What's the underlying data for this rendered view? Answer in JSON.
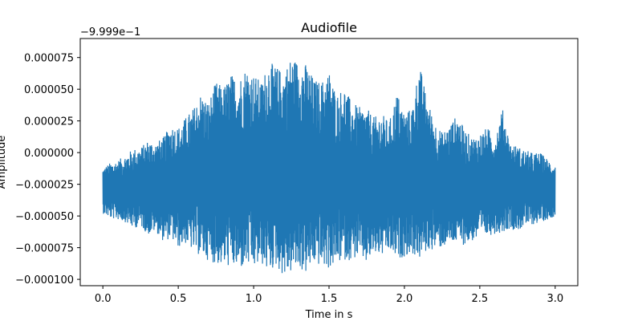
{
  "chart_data": {
    "type": "line",
    "title": "Audiofile",
    "xlabel": "Time in s",
    "ylabel": "Amplitude",
    "offset_label": "−9.999e−1",
    "offset_value": -0.9999,
    "xlim": [
      -0.15,
      3.15
    ],
    "ylim": [
      -0.000105,
      9e-05
    ],
    "xticks": [
      0.0,
      0.5,
      1.0,
      1.5,
      2.0,
      2.5,
      3.0
    ],
    "xtick_labels": [
      "0.0",
      "0.5",
      "1.0",
      "1.5",
      "2.0",
      "2.5",
      "3.0"
    ],
    "yticks": [
      7.5e-05,
      5e-05,
      2.5e-05,
      0.0,
      -2.5e-05,
      -5e-05,
      -7.5e-05,
      -0.0001
    ],
    "ytick_labels": [
      "0.000075",
      "0.000050",
      "0.000025",
      "0.000000",
      "−0.000025",
      "−0.000050",
      "−0.000075",
      "−0.000100"
    ],
    "grid": false,
    "line_color": "#1f77b4",
    "series": [
      {
        "x": [
          0.0,
          0.05,
          0.1,
          0.15,
          0.2,
          0.25,
          0.3,
          0.35,
          0.4,
          0.45,
          0.5,
          0.55,
          0.6,
          0.65,
          0.7,
          0.75,
          0.8,
          0.85,
          0.9,
          0.95,
          1.0,
          1.05,
          1.1,
          1.15,
          1.2,
          1.25,
          1.3,
          1.35,
          1.4,
          1.45,
          1.5,
          1.55,
          1.6,
          1.65,
          1.7,
          1.75,
          1.8,
          1.85,
          1.9,
          1.95,
          2.0,
          2.05,
          2.1,
          2.15,
          2.2,
          2.25,
          2.3,
          2.35,
          2.4,
          2.45,
          2.5,
          2.55,
          2.6,
          2.65,
          2.7,
          2.75,
          2.8,
          2.85,
          2.9,
          2.95,
          3.0
        ],
        "upper": [
          -1.2e-05,
          -8e-06,
          -6e-06,
          -2e-06,
          3e-06,
          4e-06,
          1e-05,
          8e-06,
          1.2e-05,
          2.2e-05,
          2e-05,
          2.8e-05,
          3.5e-05,
          4.7e-05,
          4e-05,
          5.6e-05,
          5.2e-05,
          6.2e-05,
          5.8e-05,
          6.8e-05,
          6.2e-05,
          5.6e-05,
          7.2e-05,
          6.8e-05,
          6.4e-05,
          7.6e-05,
          7.2e-05,
          7e-05,
          5.8e-05,
          5.6e-05,
          6.5e-05,
          4.6e-05,
          5.2e-05,
          4e-05,
          3.6e-05,
          3.5e-05,
          2.8e-05,
          3.1e-05,
          2.4e-05,
          4.8e-05,
          3.2e-05,
          3.5e-05,
          7e-05,
          4.2e-05,
          2.5e-05,
          1.6e-05,
          2.2e-05,
          3e-05,
          1.8e-05,
          1.2e-05,
          1.5e-05,
          2e-05,
          1.2e-05,
          3.5e-05,
          8e-06,
          5e-06,
          2e-06,
          0.0,
          0.0,
          -5e-06,
          -1e-05
        ],
        "lower": [
          -4.8e-05,
          -5.2e-05,
          -5.3e-05,
          -5.5e-05,
          -6e-05,
          -5.8e-05,
          -6.5e-05,
          -6.2e-05,
          -7e-05,
          -6.8e-05,
          -7.5e-05,
          -7.2e-05,
          -7.8e-05,
          -8.2e-05,
          -8.5e-05,
          -8.8e-05,
          -9e-05,
          -9e-05,
          -9.3e-05,
          -9e-05,
          -9.2e-05,
          -8.8e-05,
          -9.5e-05,
          -9e-05,
          -9.8e-05,
          -9.5e-05,
          -9.2e-05,
          -9.6e-05,
          -8.8e-05,
          -9e-05,
          -9.2e-05,
          -8.8e-05,
          -8.5e-05,
          -8.5e-05,
          -8.2e-05,
          -8.8e-05,
          -8e-05,
          -8.2e-05,
          -7.8e-05,
          -8.5e-05,
          -8.2e-05,
          -8e-05,
          -8.5e-05,
          -7.8e-05,
          -7.6e-05,
          -7.5e-05,
          -7.2e-05,
          -7.2e-05,
          -7.3e-05,
          -7e-05,
          -6.8e-05,
          -6.6e-05,
          -6.4e-05,
          -6.3e-05,
          -6e-05,
          -6.2e-05,
          -5.8e-05,
          -5.7e-05,
          -5.5e-05,
          -5.3e-05,
          -5e-05
        ]
      }
    ]
  }
}
